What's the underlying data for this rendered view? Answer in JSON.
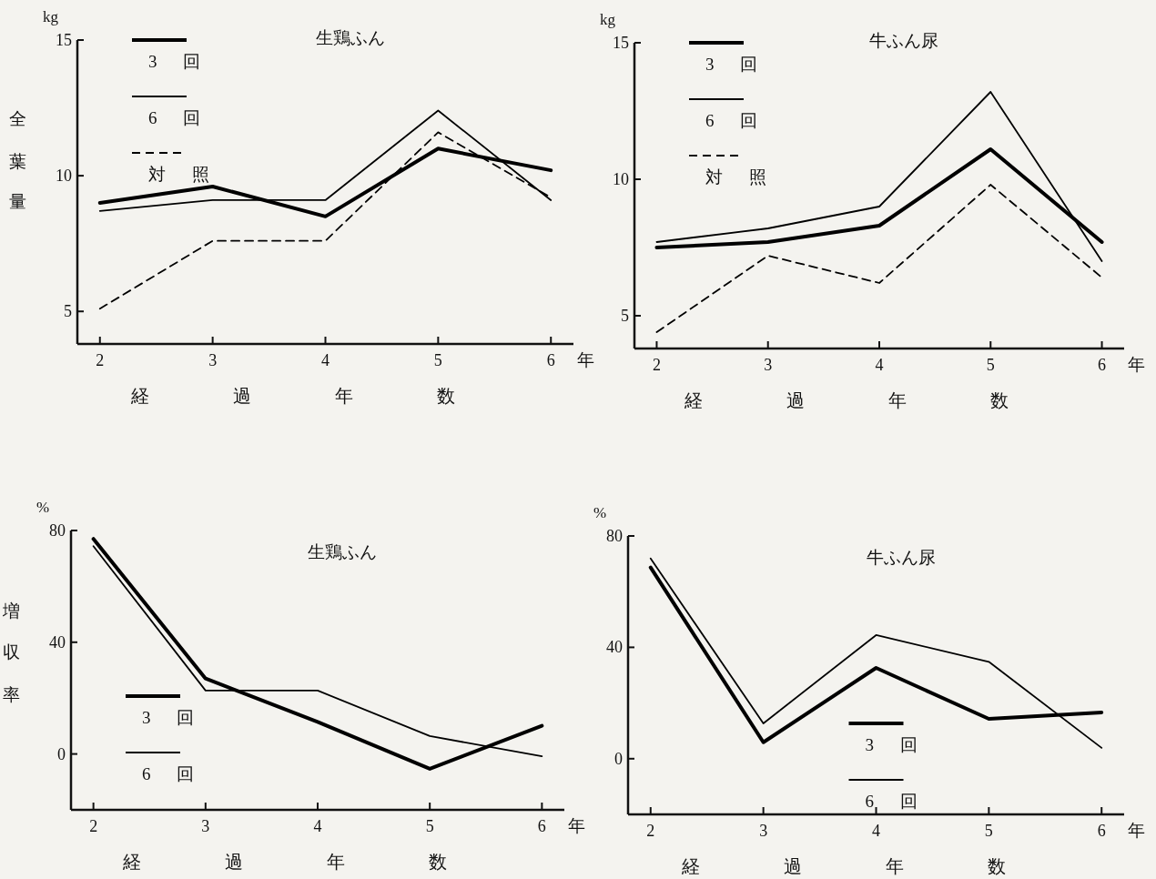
{
  "chart_data": [
    {
      "type": "line",
      "title": "生鶏ふん",
      "ylabel": "全葉量",
      "xlabel": "経過年数",
      "annotations": [
        "kg",
        "年"
      ],
      "x": [
        2,
        3,
        4,
        5,
        6
      ],
      "xlim": [
        1.8,
        6.2
      ],
      "xticks": [
        2,
        3,
        4,
        5,
        6
      ],
      "ylim": [
        3.8,
        15
      ],
      "yticks": [
        5,
        10,
        15
      ],
      "legend": "top left",
      "grid": false,
      "series": [
        {
          "name": "3 回",
          "color": "#000000",
          "line_style": "solid",
          "values": [
            9.0,
            9.6,
            8.5,
            11.0,
            10.2
          ]
        },
        {
          "name": "6 回",
          "color": "#000000",
          "line_style": "solid",
          "values": [
            8.7,
            9.1,
            9.1,
            12.4,
            9.1
          ]
        },
        {
          "name": "対 照",
          "color": "#000000",
          "line_style": "dashed",
          "values": [
            5.1,
            7.6,
            7.6,
            11.6,
            9.2
          ]
        }
      ]
    },
    {
      "type": "line",
      "title": "牛ふん尿",
      "xlabel": "経過年数",
      "annotations": [
        "kg",
        "年"
      ],
      "x": [
        2,
        3,
        4,
        5,
        6
      ],
      "xlim": [
        1.8,
        6.2
      ],
      "xticks": [
        2,
        3,
        4,
        5,
        6
      ],
      "ylim": [
        3.8,
        15
      ],
      "yticks": [
        5,
        10,
        15
      ],
      "legend": "top left",
      "grid": false,
      "series": [
        {
          "name": "3 回",
          "color": "#000000",
          "line_style": "solid",
          "values": [
            7.5,
            7.7,
            8.3,
            11.1,
            7.7
          ]
        },
        {
          "name": "6 回",
          "color": "#000000",
          "line_style": "solid",
          "values": [
            7.7,
            8.2,
            9.0,
            13.2,
            7.0
          ]
        },
        {
          "name": "対 照",
          "color": "#000000",
          "line_style": "dashed",
          "values": [
            4.4,
            7.2,
            6.2,
            9.8,
            6.4
          ]
        }
      ]
    },
    {
      "type": "line",
      "title": "生鶏ふん",
      "ylabel": "増収率",
      "xlabel": "経過年数",
      "annotations": [
        "%",
        "年"
      ],
      "x": [
        2,
        3,
        4,
        5,
        6
      ],
      "xlim": [
        1.8,
        6.2
      ],
      "xticks": [
        2,
        3,
        4,
        5,
        6
      ],
      "ylim": [
        -20,
        80
      ],
      "yticks": [
        0,
        40,
        80
      ],
      "legend": "bottom left",
      "grid": false,
      "series": [
        {
          "name": "3 回",
          "color": "#000000",
          "line_style": "solid",
          "values": [
            77,
            27,
            11.5,
            -5.3,
            10.1
          ]
        },
        {
          "name": "6 回",
          "color": "#000000",
          "line_style": "solid",
          "values": [
            74.4,
            22.7,
            22.7,
            6.4,
            -0.8
          ]
        }
      ]
    },
    {
      "type": "line",
      "title": "牛ふん尿",
      "xlabel": "経過年数",
      "annotations": [
        "%",
        "年"
      ],
      "x": [
        2,
        3,
        4,
        5,
        6
      ],
      "xlim": [
        1.8,
        6.2
      ],
      "xticks": [
        2,
        3,
        4,
        5,
        6
      ],
      "ylim": [
        -20,
        80
      ],
      "yticks": [
        0,
        40,
        80
      ],
      "legend": "bottom",
      "grid": false,
      "series": [
        {
          "name": "3 回",
          "color": "#000000",
          "line_style": "solid",
          "values": [
            68.7,
            5.9,
            32.6,
            14.3,
            16.6
          ]
        },
        {
          "name": "6 回",
          "color": "#000000",
          "line_style": "solid",
          "values": [
            71.9,
            12.7,
            44.4,
            34.8,
            3.9
          ]
        }
      ]
    }
  ]
}
